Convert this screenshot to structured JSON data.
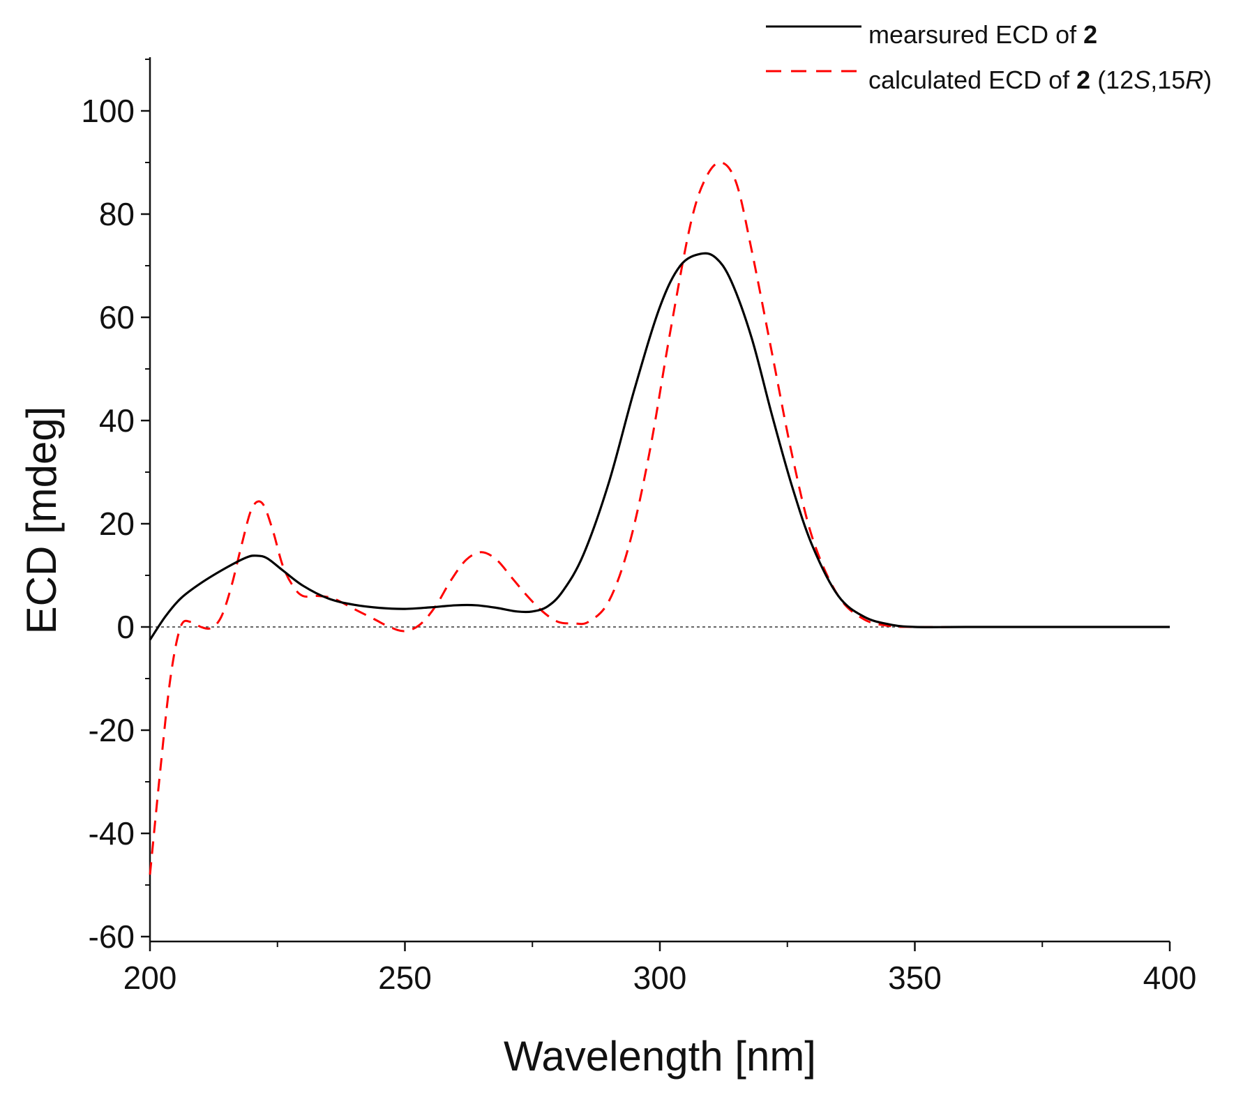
{
  "chart_data": {
    "type": "line",
    "title": "",
    "xlabel": "Wavelength [nm]",
    "ylabel": "ECD [mdeg]",
    "xlim": [
      200,
      400
    ],
    "ylim": [
      -60,
      110
    ],
    "x_ticks": [
      200,
      250,
      300,
      350,
      400
    ],
    "x_tick_labels": [
      "200",
      "250",
      "300",
      "350",
      "400"
    ],
    "x_minor_step": 25,
    "y_ticks": [
      -60,
      -40,
      -20,
      0,
      20,
      40,
      60,
      80,
      100
    ],
    "y_tick_labels": [
      "-60",
      "-40",
      "-20",
      "0",
      "20",
      "40",
      "60",
      "80",
      "100"
    ],
    "y_minor_step": 10,
    "zero_reference_line": true,
    "grid": false,
    "legend_position": "top-right",
    "series": [
      {
        "name": "mearsured ECD of 2",
        "legend_parts": [
          {
            "text": "mearsured ECD of ",
            "style": "normal"
          },
          {
            "text": "2",
            "style": "bold"
          }
        ],
        "color": "#000000",
        "line_style": "solid",
        "x": [
          200,
          203,
          206,
          210,
          215,
          219,
          221,
          223,
          226,
          230,
          235,
          240,
          245,
          250,
          255,
          260,
          264,
          268,
          272,
          275,
          278,
          281,
          285,
          290,
          295,
          300,
          304,
          308,
          311,
          314,
          318,
          322,
          326,
          330,
          335,
          340,
          345,
          350,
          360,
          380,
          400
        ],
        "y": [
          -2.5,
          2,
          5.5,
          8.5,
          11.5,
          13.5,
          13.8,
          13.3,
          11,
          8,
          5.5,
          4.3,
          3.7,
          3.5,
          3.8,
          4.2,
          4.2,
          3.7,
          3,
          3,
          4,
          7,
          14,
          28,
          46,
          62,
          70,
          72.3,
          71.5,
          67,
          56,
          41,
          27,
          15.5,
          6,
          2,
          0.5,
          0,
          0,
          0,
          0
        ]
      },
      {
        "name": "calculated ECD of 2 (12S,15R)",
        "legend_parts": [
          {
            "text": "calculated ECD of ",
            "style": "normal"
          },
          {
            "text": "2",
            "style": "bold"
          },
          {
            "text": " (12",
            "style": "normal"
          },
          {
            "text": "S",
            "style": "italic"
          },
          {
            "text": ",15",
            "style": "normal"
          },
          {
            "text": "R",
            "style": "italic"
          },
          {
            "text": ")",
            "style": "normal"
          }
        ],
        "color": "#ff0000",
        "line_style": "dashed",
        "x": [
          200,
          202,
          204,
          206,
          208,
          210,
          212,
          214,
          216,
          218,
          220,
          222,
          224,
          226,
          228,
          230,
          233,
          236,
          240,
          244,
          247,
          250,
          253,
          256,
          259,
          262,
          265,
          268,
          271,
          274,
          277,
          280,
          283,
          286,
          290,
          294,
          298,
          302,
          306,
          309,
          312,
          315,
          318,
          322,
          326,
          330,
          335,
          340,
          345,
          350,
          360,
          380,
          400
        ],
        "y": [
          -48,
          -28,
          -10,
          0,
          1,
          0,
          -0.2,
          2,
          8,
          16,
          23,
          24,
          19,
          12,
          8,
          6,
          6,
          5.5,
          3.5,
          1.5,
          0,
          -0.8,
          0.5,
          4,
          9,
          13,
          14.5,
          13,
          9.5,
          6,
          3,
          1,
          0.7,
          1,
          5,
          16,
          34,
          57,
          78,
          87,
          90,
          86,
          73,
          53,
          33,
          17,
          6,
          1.5,
          0.2,
          0,
          0,
          0,
          0
        ]
      }
    ]
  }
}
